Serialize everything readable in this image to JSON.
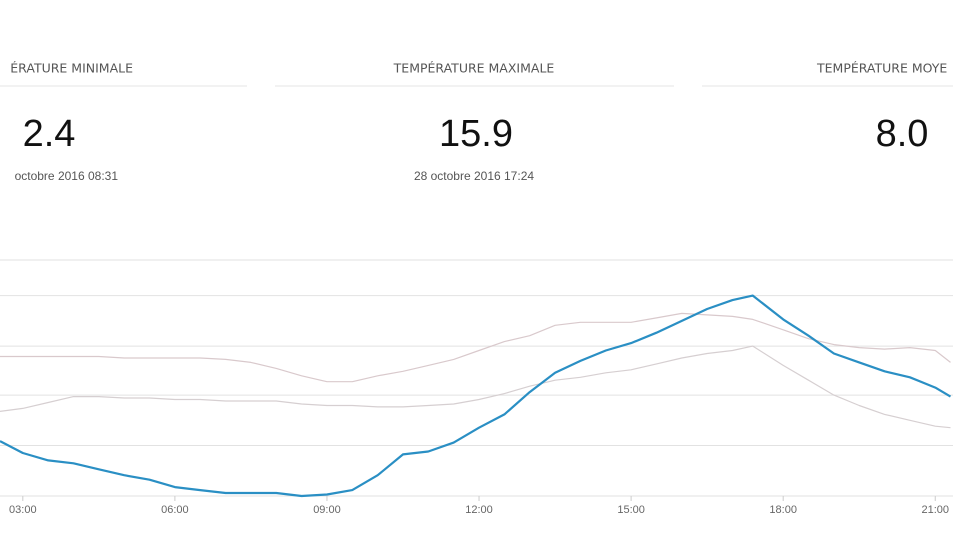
{
  "stats": [
    {
      "header": "ÉRATURE MINIMALE",
      "value": "2.4",
      "date": "octobre 2016 08:31"
    },
    {
      "header": "TEMPÉRATURE MAXIMALE",
      "value": "15.9",
      "date": "28 octobre 2016 17:24"
    },
    {
      "header": "TEMPÉRATURE MOYE",
      "value": "8.0"
    }
  ],
  "chart_data": {
    "type": "line",
    "x": [
      2.55,
      3,
      3.5,
      4,
      4.5,
      5,
      5.5,
      6,
      6.5,
      7,
      7.5,
      8,
      8.5,
      9,
      9.5,
      10,
      10.5,
      11,
      11.5,
      12,
      12.5,
      13,
      13.5,
      14,
      14.5,
      15,
      15.5,
      16,
      16.5,
      17,
      17.4,
      18,
      18.5,
      19,
      19.5,
      20,
      20.5,
      21,
      21.3
    ],
    "series": [
      {
        "color": "#d9c9cc",
        "values": [
          11.8,
          11.8,
          11.8,
          11.8,
          11.8,
          11.7,
          11.7,
          11.7,
          11.7,
          11.6,
          11.4,
          11.0,
          10.5,
          10.1,
          10.1,
          10.5,
          10.8,
          11.2,
          11.6,
          12.2,
          12.8,
          13.2,
          13.9,
          14.1,
          14.1,
          14.1,
          14.4,
          14.7,
          14.6,
          14.5,
          14.3,
          13.6,
          13.0,
          12.6,
          12.4,
          12.3,
          12.4,
          12.2,
          11.4
        ]
      },
      {
        "color": "#d6cfd1",
        "values": [
          8.1,
          8.3,
          8.7,
          9.1,
          9.1,
          9.0,
          9.0,
          8.9,
          8.9,
          8.8,
          8.8,
          8.8,
          8.6,
          8.5,
          8.5,
          8.4,
          8.4,
          8.5,
          8.6,
          8.9,
          9.3,
          9.8,
          10.2,
          10.4,
          10.7,
          10.9,
          11.3,
          11.7,
          12.0,
          12.2,
          12.5,
          11.2,
          10.2,
          9.2,
          8.5,
          7.9,
          7.5,
          7.1,
          7.0
        ]
      },
      {
        "color": "#2a8fc4",
        "values": [
          6.1,
          5.3,
          4.8,
          4.6,
          4.2,
          3.8,
          3.5,
          3.0,
          2.8,
          2.6,
          2.6,
          2.6,
          2.4,
          2.5,
          2.8,
          3.8,
          5.2,
          5.4,
          6.0,
          7.0,
          7.9,
          9.4,
          10.7,
          11.5,
          12.2,
          12.7,
          13.4,
          14.2,
          15.0,
          15.6,
          15.9,
          14.3,
          13.2,
          12.0,
          11.4,
          10.8,
          10.4,
          9.7,
          9.1
        ]
      }
    ],
    "xlim": [
      2.55,
      21.35
    ],
    "xticks": [
      {
        "value": 3,
        "label": "03:00"
      },
      {
        "value": 6,
        "label": "06:00"
      },
      {
        "value": 9,
        "label": "09:00"
      },
      {
        "value": 12,
        "label": "12:00"
      },
      {
        "value": 15,
        "label": "15:00"
      },
      {
        "value": 18,
        "label": "18:00"
      },
      {
        "value": 21,
        "label": "21:00"
      }
    ],
    "ylim": [
      2.4,
      18.3
    ],
    "yticks": [
      2.4,
      5.8,
      9.2,
      12.5,
      15.9,
      18.3
    ],
    "grid": true
  }
}
